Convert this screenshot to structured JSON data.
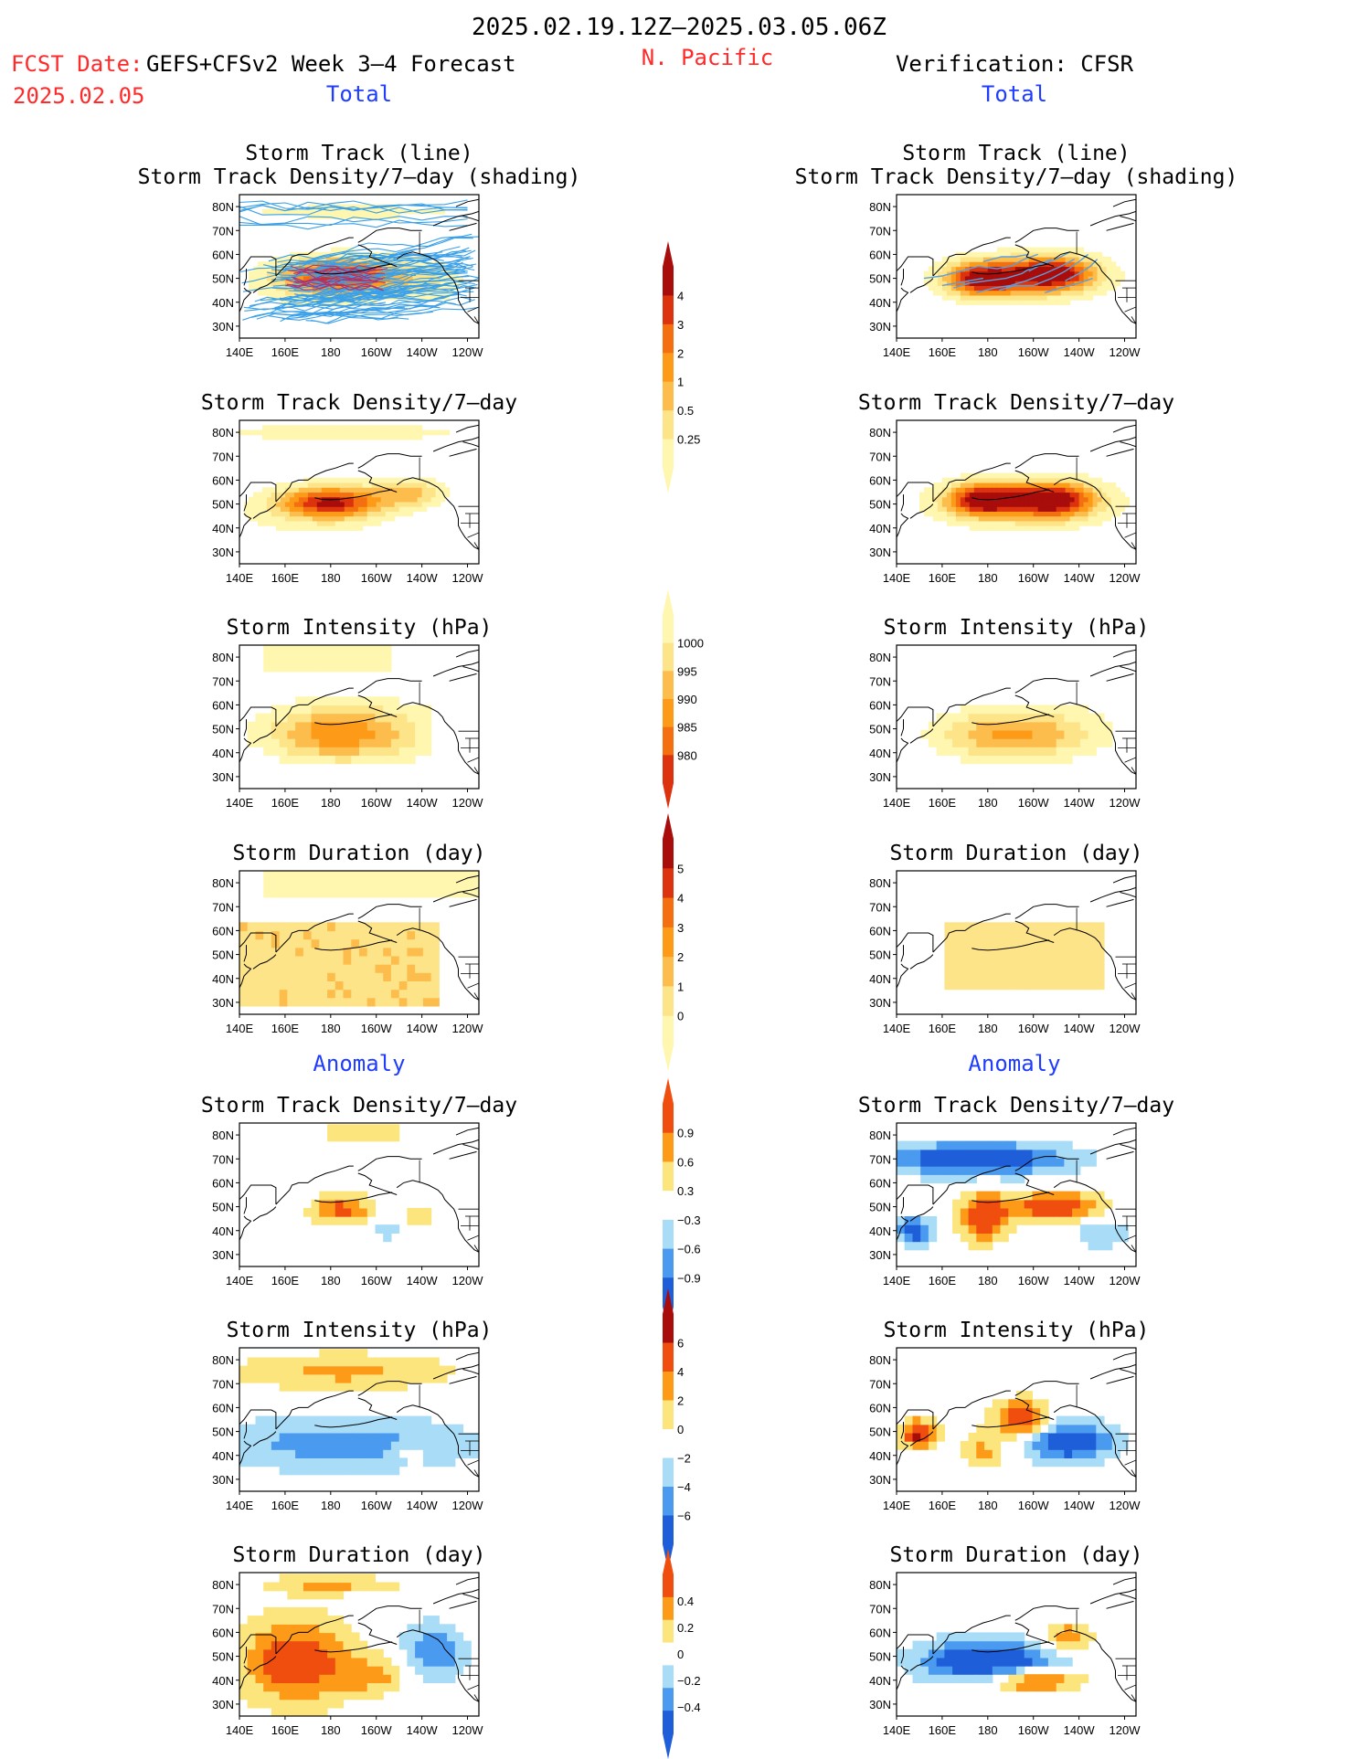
{
  "header": {
    "date_range": "2025.02.19.12Z–2025.03.05.06Z",
    "fcst_date_label": "FCST Date:",
    "fcst_model": "GEFS+CFSv2 Week 3–4 Forecast",
    "fcst_date": "2025.02.05",
    "region": "N. Pacific",
    "verification": "Verification: CFSR",
    "total_left": "Total",
    "total_right": "Total",
    "anomaly_left": "Anomaly",
    "anomaly_right": "Anomaly"
  },
  "axes": {
    "lat_ticks": [
      "80N",
      "70N",
      "60N",
      "50N",
      "40N",
      "30N"
    ],
    "lon_ticks": [
      "140E",
      "160E",
      "180",
      "160W",
      "140W",
      "120W"
    ]
  },
  "colors": {
    "total_scale": [
      "#fff6b0",
      "#fde488",
      "#fdbd4d",
      "#fd9a18",
      "#f46f10",
      "#dc320e",
      "#a80d0b"
    ],
    "anom_scale": [
      "#1e5ed8",
      "#4a9af0",
      "#a8dcf7",
      "#ffffff",
      "#fde57e",
      "#fd9a18",
      "#f04e0f",
      "#a80d0b"
    ],
    "track_forecast": "#3aa0e8",
    "track_forecast_hi": "#b0306a",
    "track_verif": "#5aa0e0",
    "title_red": "#ff2a2a",
    "title_blue": "#1f3cff"
  },
  "colorbars": [
    {
      "name": "density-total",
      "labels": [
        "4",
        "3",
        "2",
        "1",
        "0.5",
        "0.25"
      ]
    },
    {
      "name": "intensity-total",
      "labels": [
        "1000",
        "995",
        "990",
        "985",
        "980"
      ]
    },
    {
      "name": "duration-total",
      "labels": [
        "5",
        "4",
        "3",
        "2",
        "1",
        "0"
      ]
    },
    {
      "name": "density-anom",
      "labels": [
        "0.9",
        "0.6",
        "0.3",
        "−0.3",
        "−0.6",
        "−0.9"
      ]
    },
    {
      "name": "intensity-anom",
      "labels": [
        "6",
        "4",
        "2",
        "0",
        "−2",
        "−4",
        "−6"
      ]
    },
    {
      "name": "duration-anom",
      "labels": [
        "0.4",
        "0.2",
        "0",
        "−0.2",
        "−0.4"
      ]
    }
  ],
  "panels": [
    {
      "id": "fc-track",
      "col": "left",
      "row": 0,
      "title": [
        "Storm Track (line)",
        "Storm Track Density/7–day (shading)"
      ],
      "kind": "track-total",
      "scale": "total",
      "tracks": "forecast"
    },
    {
      "id": "vf-track",
      "col": "right",
      "row": 0,
      "title": [
        "Storm Track (line)",
        "Storm Track Density/7–day (shading)"
      ],
      "kind": "track-total-verif",
      "scale": "total",
      "tracks": "verif"
    },
    {
      "id": "fc-dens",
      "col": "left",
      "row": 1,
      "title": [
        "Storm Track Density/7–day"
      ],
      "kind": "density-fc",
      "scale": "total"
    },
    {
      "id": "vf-dens",
      "col": "right",
      "row": 1,
      "title": [
        "Storm Track Density/7–day"
      ],
      "kind": "density-vf",
      "scale": "total"
    },
    {
      "id": "fc-int",
      "col": "left",
      "row": 2,
      "title": [
        "Storm Intensity (hPa)"
      ],
      "kind": "intensity-fc",
      "scale": "total"
    },
    {
      "id": "vf-int",
      "col": "right",
      "row": 2,
      "title": [
        "Storm Intensity (hPa)"
      ],
      "kind": "intensity-vf",
      "scale": "total"
    },
    {
      "id": "fc-dur",
      "col": "left",
      "row": 3,
      "title": [
        "Storm Duration (day)"
      ],
      "kind": "duration-fc",
      "scale": "total"
    },
    {
      "id": "vf-dur",
      "col": "right",
      "row": 3,
      "title": [
        "Storm Duration (day)"
      ],
      "kind": "duration-vf",
      "scale": "total"
    },
    {
      "id": "fc-dens-a",
      "col": "left",
      "row": 4,
      "title": [
        "Storm Track Density/7–day"
      ],
      "kind": "adens-fc",
      "scale": "anom"
    },
    {
      "id": "vf-dens-a",
      "col": "right",
      "row": 4,
      "title": [
        "Storm Track Density/7–day"
      ],
      "kind": "adens-vf",
      "scale": "anom"
    },
    {
      "id": "fc-int-a",
      "col": "left",
      "row": 5,
      "title": [
        "Storm Intensity (hPa)"
      ],
      "kind": "aint-fc",
      "scale": "anom"
    },
    {
      "id": "vf-int-a",
      "col": "right",
      "row": 5,
      "title": [
        "Storm Intensity (hPa)"
      ],
      "kind": "aint-vf",
      "scale": "anom"
    },
    {
      "id": "fc-dur-a",
      "col": "left",
      "row": 6,
      "title": [
        "Storm Duration (day)"
      ],
      "kind": "adur-fc",
      "scale": "anom"
    },
    {
      "id": "vf-dur-a",
      "col": "right",
      "row": 6,
      "title": [
        "Storm Duration (day)"
      ],
      "kind": "adur-vf",
      "scale": "anom"
    }
  ],
  "chart_data": {
    "type": "heatmap",
    "title": "2025.02.19.12Z–2025.03.05.06Z",
    "region": "N. Pacific",
    "lon_range": [
      "140E",
      "120W"
    ],
    "lat_range": [
      "25N",
      "85N"
    ],
    "panels": [
      {
        "id": "fc-track",
        "variable": "Storm Track Density/7–day",
        "max_level": 4,
        "center": [
          "180",
          "50N"
        ]
      },
      {
        "id": "vf-track",
        "variable": "Storm Track Density/7–day",
        "max_level": 4,
        "center": [
          "170W",
          "50N"
        ]
      },
      {
        "id": "fc-int",
        "variable": "Storm Intensity (hPa)",
        "min_level": 980
      },
      {
        "id": "fc-dur",
        "variable": "Storm Duration (day)",
        "max_level": 3
      },
      {
        "id": "vf-dens-a",
        "variable": "Storm Track Density/7–day anomaly",
        "range": [
          -0.9,
          0.9
        ]
      },
      {
        "id": "fc-int-a",
        "variable": "Storm Intensity (hPa) anomaly",
        "range": [
          -6,
          6
        ]
      },
      {
        "id": "fc-dur-a",
        "variable": "Storm Duration (day) anomaly",
        "range": [
          -0.4,
          0.4
        ]
      }
    ]
  }
}
